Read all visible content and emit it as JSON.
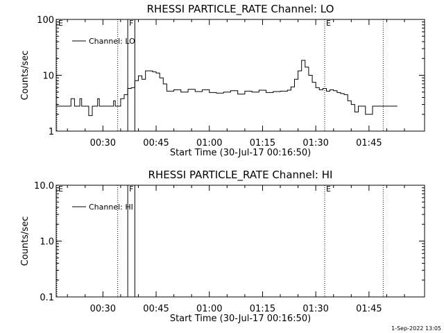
{
  "footer": {
    "stamp": "1-Sep-2022 13:05"
  },
  "chart_data": [
    {
      "type": "line",
      "title": "RHESSI PARTICLE_RATE Channel: LO",
      "xlabel": "Start Time (30-Jul-17 00:16:50)",
      "ylabel": "Counts/sec",
      "yscale": "log",
      "ylim": [
        1,
        100
      ],
      "yticks": [
        {
          "value": 1,
          "label": "1"
        },
        {
          "value": 10,
          "label": "10"
        },
        {
          "value": 100,
          "label": "100"
        }
      ],
      "xlim": [
        "00:16:50",
        "02:00:40"
      ],
      "xticks": [
        "00:30",
        "00:45",
        "01:00",
        "01:15",
        "01:30",
        "01:45"
      ],
      "grid": false,
      "legend": "top-left",
      "series": [
        {
          "name": "Channel: LO",
          "x": [
            "00:17:00",
            "00:18:00",
            "00:19:00",
            "00:20:00",
            "00:21:00",
            "00:22:00",
            "00:23:00",
            "00:23:30",
            "00:24:00",
            "00:24:30",
            "00:25:00",
            "00:26:00",
            "00:27:00",
            "00:28:00",
            "00:28:30",
            "00:29:00",
            "00:30:00",
            "00:31:00",
            "00:32:00",
            "00:32:30",
            "00:33:00",
            "00:33:30",
            "00:34:00",
            "00:35:00",
            "00:36:00",
            "00:37:00",
            "00:38:00",
            "00:39:00",
            "00:40:00",
            "00:41:00",
            "00:42:00",
            "00:43:00",
            "00:44:00",
            "00:45:00",
            "00:46:00",
            "00:47:00",
            "00:48:00",
            "00:50:00",
            "00:52:00",
            "00:54:00",
            "00:56:00",
            "00:58:00",
            "01:00:00",
            "01:02:00",
            "01:04:00",
            "01:06:00",
            "01:08:00",
            "01:10:00",
            "01:12:00",
            "01:14:00",
            "01:16:00",
            "01:18:00",
            "01:20:00",
            "01:22:00",
            "01:23:00",
            "01:24:00",
            "01:25:00",
            "01:26:00",
            "01:27:00",
            "01:28:00",
            "01:29:00",
            "01:30:00",
            "01:31:00",
            "01:32:00",
            "01:33:00",
            "01:34:00",
            "01:35:00",
            "01:36:00",
            "01:37:00",
            "01:38:00",
            "01:39:00",
            "01:40:00",
            "01:41:00",
            "01:42:00",
            "01:43:00",
            "01:44:00",
            "01:46:00",
            "01:48:00",
            "01:50:00",
            "01:52:00",
            "01:53:00"
          ],
          "values": [
            2.8,
            2.8,
            2.8,
            2.8,
            3.8,
            2.8,
            2.8,
            3.8,
            2.8,
            2.8,
            2.8,
            1.9,
            2.8,
            2.8,
            3.8,
            2.8,
            2.8,
            2.8,
            2.8,
            2.8,
            3.5,
            2.8,
            2.8,
            3.8,
            4.5,
            5.8,
            6.0,
            8.0,
            9.8,
            8.5,
            12.0,
            12.0,
            11.5,
            11.0,
            9.0,
            7.0,
            5.2,
            5.5,
            5.0,
            5.6,
            5.1,
            5.5,
            4.9,
            4.8,
            5.0,
            5.3,
            4.6,
            5.2,
            5.0,
            5.4,
            4.9,
            5.1,
            5.2,
            5.4,
            6.2,
            8.5,
            12.0,
            18.5,
            14.0,
            10.0,
            7.5,
            6.0,
            5.5,
            5.8,
            5.2,
            5.5,
            5.3,
            4.9,
            4.7,
            4.5,
            3.5,
            3.0,
            2.2,
            2.8,
            2.8,
            2.0,
            2.8,
            2.8,
            2.8,
            2.8,
            2.8
          ]
        }
      ],
      "markers": [
        {
          "label": "E",
          "time": "00:16:50",
          "style": "dotted"
        },
        {
          "label": "",
          "time": "00:34:10",
          "style": "dotted"
        },
        {
          "label": "F",
          "time": "00:37:00",
          "style": "solid"
        },
        {
          "label": "",
          "time": "00:39:00",
          "style": "solid"
        },
        {
          "label": "E",
          "time": "01:32:30",
          "style": "dotted"
        },
        {
          "label": "",
          "time": "01:49:00",
          "style": "dotted"
        }
      ]
    },
    {
      "type": "line",
      "title": "RHESSI PARTICLE_RATE Channel: HI",
      "xlabel": "Start Time (30-Jul-17 00:16:50)",
      "ylabel": "Counts/sec",
      "yscale": "log",
      "ylim": [
        0.1,
        10
      ],
      "yticks": [
        {
          "value": 0.1,
          "label": "0.1"
        },
        {
          "value": 1,
          "label": "1.0"
        },
        {
          "value": 10,
          "label": "10.0"
        }
      ],
      "xlim": [
        "00:16:50",
        "02:00:40"
      ],
      "xticks": [
        "00:30",
        "00:45",
        "01:00",
        "01:15",
        "01:30",
        "01:45"
      ],
      "grid": false,
      "legend": "top-left",
      "series": [
        {
          "name": "Channel: HI",
          "x": [],
          "values": []
        }
      ],
      "markers": [
        {
          "label": "E",
          "time": "00:16:50",
          "style": "dotted"
        },
        {
          "label": "",
          "time": "00:34:10",
          "style": "dotted"
        },
        {
          "label": "F",
          "time": "00:37:00",
          "style": "solid"
        },
        {
          "label": "",
          "time": "00:39:00",
          "style": "solid"
        },
        {
          "label": "E",
          "time": "01:32:30",
          "style": "dotted"
        },
        {
          "label": "",
          "time": "01:49:00",
          "style": "dotted"
        }
      ]
    }
  ]
}
